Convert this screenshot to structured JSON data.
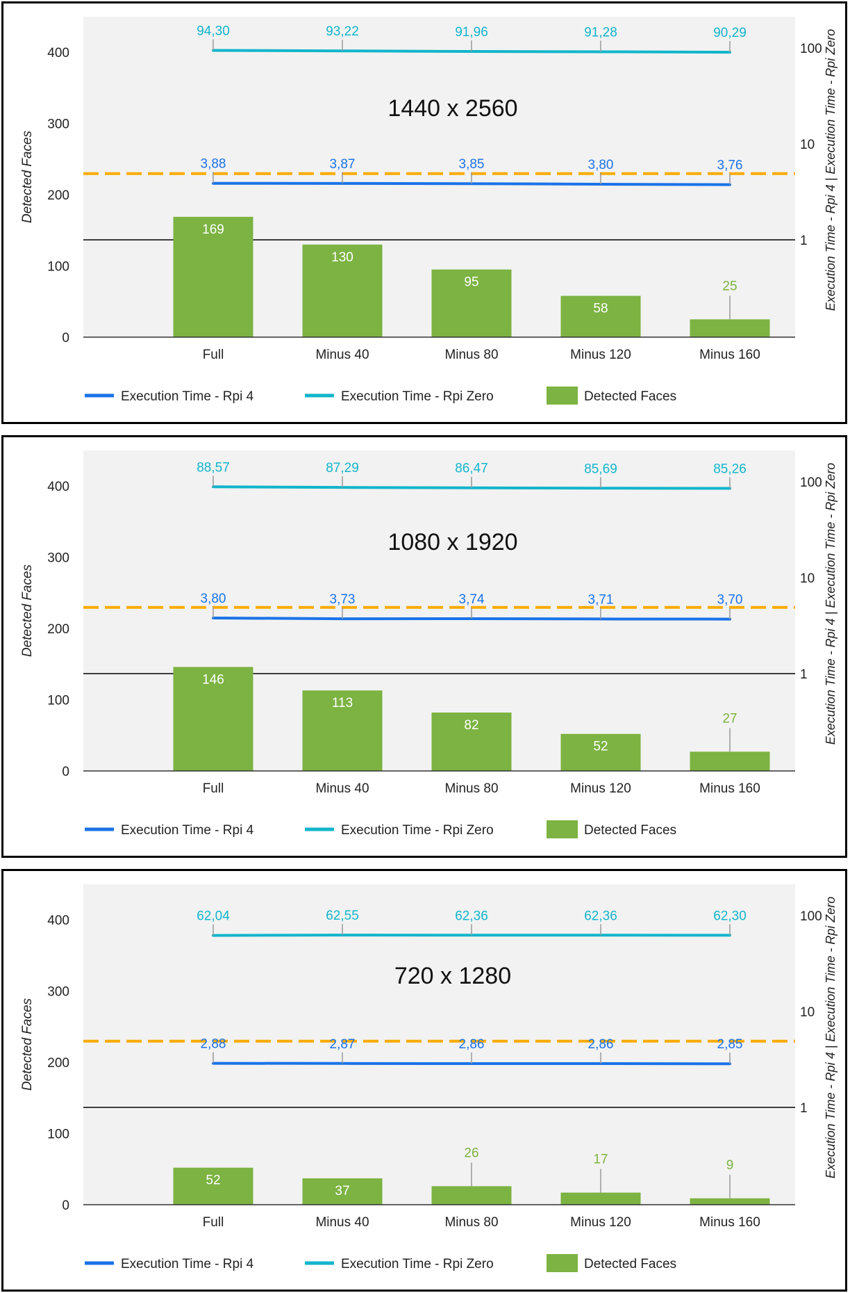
{
  "chart_data": [
    {
      "type": "bar+line",
      "title": "1440 x 2560",
      "categories": [
        "Full",
        "Minus 40",
        "Minus 80",
        "Minus 120",
        "Minus 160"
      ],
      "ylabel": "Detected Faces",
      "y2label": "Execution Time - Rpi 4 | Execution Time - Rpi Zero",
      "ylim": [
        0,
        450
      ],
      "yticks": [
        "0",
        "100",
        "200",
        "300",
        "400"
      ],
      "y2scale": "log",
      "y2ticks": [
        "1",
        "10",
        "100"
      ],
      "threshold_value": 1,
      "reference_line_value": 4.9,
      "series": [
        {
          "name": "Execution Time - Rpi 4",
          "kind": "line",
          "axis": "right",
          "color": "#1a73e8",
          "values": [
            3.88,
            3.87,
            3.85,
            3.8,
            3.76
          ],
          "labels": [
            "3,88",
            "3,87",
            "3,85",
            "3,80",
            "3,76"
          ]
        },
        {
          "name": "Execution Time - Rpi Zero",
          "kind": "line",
          "axis": "right",
          "color": "#12b5cb",
          "values": [
            94.3,
            93.22,
            91.96,
            91.28,
            90.29
          ],
          "labels": [
            "94,30",
            "93,22",
            "91,96",
            "91,28",
            "90,29"
          ]
        },
        {
          "name": "Detected Faces",
          "kind": "bar",
          "axis": "left",
          "color": "#7cb342",
          "values": [
            169,
            130,
            95,
            58,
            25
          ],
          "labels": [
            "169",
            "130",
            "95",
            "58",
            "25"
          ]
        }
      ]
    },
    {
      "type": "bar+line",
      "title": "1080 x 1920",
      "categories": [
        "Full",
        "Minus 40",
        "Minus 80",
        "Minus 120",
        "Minus 160"
      ],
      "ylabel": "Detected Faces",
      "y2label": "Execution Time - Rpi 4 | Execution Time - Rpi Zero",
      "ylim": [
        0,
        450
      ],
      "yticks": [
        "0",
        "100",
        "200",
        "300",
        "400"
      ],
      "y2scale": "log",
      "y2ticks": [
        "1",
        "10",
        "100"
      ],
      "threshold_value": 1,
      "reference_line_value": 4.9,
      "series": [
        {
          "name": "Execution Time - Rpi 4",
          "kind": "line",
          "axis": "right",
          "color": "#1a73e8",
          "values": [
            3.8,
            3.73,
            3.74,
            3.71,
            3.7
          ],
          "labels": [
            "3,80",
            "3,73",
            "3,74",
            "3,71",
            "3,70"
          ]
        },
        {
          "name": "Execution Time - Rpi Zero",
          "kind": "line",
          "axis": "right",
          "color": "#12b5cb",
          "values": [
            88.57,
            87.29,
            86.47,
            85.69,
            85.26
          ],
          "labels": [
            "88,57",
            "87,29",
            "86,47",
            "85,69",
            "85,26"
          ]
        },
        {
          "name": "Detected Faces",
          "kind": "bar",
          "axis": "left",
          "color": "#7cb342",
          "values": [
            146,
            113,
            82,
            52,
            27
          ],
          "labels": [
            "146",
            "113",
            "82",
            "52",
            "27"
          ]
        }
      ]
    },
    {
      "type": "bar+line",
      "title": "720 x 1280",
      "categories": [
        "Full",
        "Minus 40",
        "Minus 80",
        "Minus 120",
        "Minus 160"
      ],
      "ylabel": "Detected Faces",
      "y2label": "Execution Time - Rpi 4 | Execution Time - Rpi Zero",
      "ylim": [
        0,
        450
      ],
      "yticks": [
        "0",
        "100",
        "200",
        "300",
        "400"
      ],
      "y2scale": "log",
      "y2ticks": [
        "1",
        "10",
        "100"
      ],
      "threshold_value": 1,
      "reference_line_value": 4.9,
      "series": [
        {
          "name": "Execution Time - Rpi 4",
          "kind": "line",
          "axis": "right",
          "color": "#1a73e8",
          "values": [
            2.88,
            2.87,
            2.86,
            2.86,
            2.85
          ],
          "labels": [
            "2,88",
            "2,87",
            "2,86",
            "2,86",
            "2,85"
          ]
        },
        {
          "name": "Execution Time - Rpi Zero",
          "kind": "line",
          "axis": "right",
          "color": "#12b5cb",
          "values": [
            62.04,
            62.55,
            62.36,
            62.36,
            62.3
          ],
          "labels": [
            "62,04",
            "62,55",
            "62,36",
            "62,36",
            "62,30"
          ]
        },
        {
          "name": "Detected Faces",
          "kind": "bar",
          "axis": "left",
          "color": "#7cb342",
          "values": [
            52,
            37,
            26,
            17,
            9
          ],
          "labels": [
            "52",
            "37",
            "26",
            "17",
            "9"
          ]
        }
      ]
    }
  ],
  "colors": {
    "plot_background": "#f2f2f2",
    "reference_line": "#f9ab00",
    "threshold_line": "#000000",
    "bar_label_inside": "#ffffff",
    "bar_label_outside": "#7cb342"
  }
}
